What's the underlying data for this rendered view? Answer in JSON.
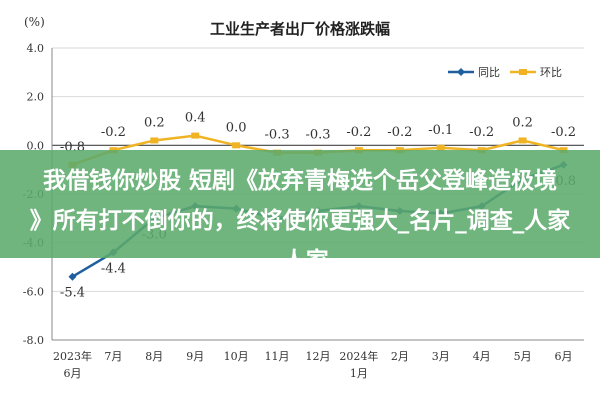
{
  "chart_data": {
    "type": "line",
    "title": "工业生产者出厂价格涨跌幅",
    "yunit": "(%)",
    "ylim": [
      -8.0,
      4.0
    ],
    "yticks": [
      "4.0",
      "2.0",
      "0.0",
      "-2.0",
      "-4.0",
      "-6.0",
      "-8.0"
    ],
    "yticks_values": [
      4,
      2,
      0,
      -2,
      -4,
      -6,
      -8
    ],
    "categories": [
      "2023年\n6月",
      "7月",
      "8月",
      "9月",
      "10月",
      "11月",
      "12月",
      "2024年\n1月",
      "2月",
      "3月",
      "4月",
      "5月",
      "6月"
    ],
    "series": [
      {
        "name": "同比",
        "color": "#1f5f9f",
        "values": [
          -5.4,
          -4.4,
          -3.0,
          -2.5,
          -2.6,
          -3.0,
          -2.7,
          -2.5,
          -2.7,
          -2.8,
          -2.5,
          -1.4,
          -0.8
        ],
        "labels": [
          "-5.4",
          "-4.4",
          "-3.0",
          "",
          "",
          "",
          "",
          "",
          "",
          "",
          "",
          "",
          "-0.8"
        ]
      },
      {
        "name": "环比",
        "color": "#f0b323",
        "values": [
          -0.8,
          -0.2,
          0.2,
          0.4,
          0.0,
          -0.3,
          -0.3,
          -0.2,
          -0.2,
          -0.1,
          -0.2,
          0.2,
          -0.2
        ],
        "labels": [
          "-0.8",
          "-0.2",
          "0.2",
          "0.4",
          "0.0",
          "-0.3",
          "-0.3",
          "-0.2",
          "-0.2",
          "-0.1",
          "-0.2",
          "0.2",
          "-0.2"
        ]
      }
    ],
    "grid": true,
    "legend": "top-right"
  },
  "overlay": {
    "line1": "我借钱你炒股 短剧《放弃青梅选个岳父登峰造极境",
    "line2": "》所有打不倒你的，终将使你更强大_名片_调查_人家",
    "line3": "_人家"
  }
}
